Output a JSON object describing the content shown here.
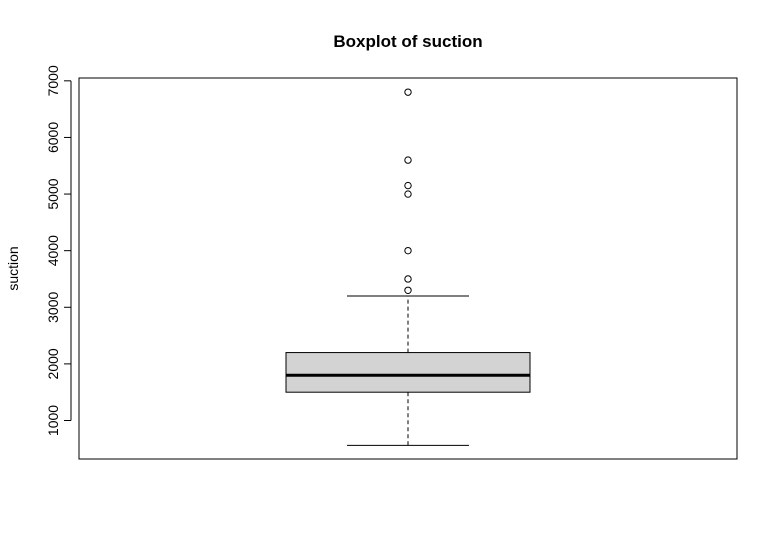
{
  "chart_data": {
    "type": "boxplot",
    "title": "Boxplot of suction",
    "xlabel": "",
    "ylabel": "suction",
    "ylim": [
      320,
      7050
    ],
    "yticks": [
      1000,
      2000,
      3000,
      4000,
      5000,
      6000,
      7000
    ],
    "ytick_labels": [
      "1000",
      "2000",
      "3000",
      "4000",
      "5000",
      "6000",
      "7000"
    ],
    "grid": false,
    "box": {
      "whisker_low": 560,
      "q1": 1500,
      "median": 1800,
      "q3": 2200,
      "whisker_high": 3200,
      "outliers": [
        3300,
        3500,
        4000,
        5000,
        5150,
        5600,
        6800
      ]
    },
    "colors": {
      "box_fill": "#d3d3d3",
      "stroke": "#000000",
      "background": "#ffffff"
    }
  }
}
